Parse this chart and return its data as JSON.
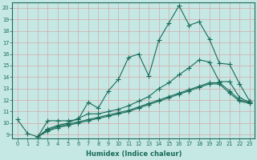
{
  "xlabel": "Humidex (Indice chaleur)",
  "bg_color": "#c5e8e4",
  "line_color": "#1a6b5a",
  "grid_color": "#d4a8a8",
  "xlim": [
    -0.5,
    23.5
  ],
  "ylim": [
    8.7,
    20.5
  ],
  "xticks": [
    0,
    1,
    2,
    3,
    4,
    5,
    6,
    7,
    8,
    9,
    10,
    11,
    12,
    13,
    14,
    15,
    16,
    17,
    18,
    19,
    20,
    21,
    22,
    23
  ],
  "yticks": [
    9,
    10,
    11,
    12,
    13,
    14,
    15,
    16,
    17,
    18,
    19,
    20
  ],
  "line1_x": [
    0,
    1,
    2,
    3,
    4,
    5,
    6,
    7,
    8,
    9,
    10,
    11,
    12,
    13,
    14,
    15,
    16,
    17,
    18,
    19,
    20,
    21,
    22,
    23
  ],
  "line1_y": [
    10.3,
    9.1,
    8.8,
    10.2,
    10.2,
    10.2,
    10.3,
    11.8,
    11.3,
    12.8,
    13.8,
    15.7,
    16.0,
    14.1,
    17.2,
    18.7,
    20.2,
    18.5,
    18.8,
    17.3,
    15.2,
    15.1,
    13.4,
    11.9
  ],
  "line2_x": [
    2,
    3,
    4,
    5,
    6,
    7,
    8,
    9,
    10,
    11,
    12,
    13,
    14,
    15,
    16,
    17,
    18,
    19,
    20,
    21,
    22,
    23
  ],
  "line2_y": [
    8.8,
    9.5,
    9.8,
    10.0,
    10.4,
    10.8,
    10.8,
    11.0,
    11.2,
    11.5,
    11.9,
    12.3,
    13.0,
    13.5,
    14.2,
    14.8,
    15.5,
    15.3,
    13.6,
    13.6,
    12.2,
    11.8
  ],
  "line3_x": [
    2,
    3,
    4,
    5,
    6,
    7,
    8,
    9,
    10,
    11,
    12,
    13,
    14,
    15,
    16,
    17,
    18,
    19,
    20,
    21,
    22,
    23
  ],
  "line3_y": [
    8.8,
    9.4,
    9.7,
    9.9,
    10.1,
    10.3,
    10.5,
    10.7,
    10.9,
    11.1,
    11.4,
    11.7,
    12.0,
    12.3,
    12.6,
    12.9,
    13.2,
    13.5,
    13.5,
    12.8,
    12.0,
    11.8
  ],
  "line4_x": [
    2,
    3,
    4,
    5,
    6,
    7,
    8,
    9,
    10,
    11,
    12,
    13,
    14,
    15,
    16,
    17,
    18,
    19,
    20,
    21,
    22,
    23
  ],
  "line4_y": [
    8.8,
    9.3,
    9.6,
    9.8,
    10.0,
    10.2,
    10.4,
    10.6,
    10.8,
    11.0,
    11.3,
    11.6,
    11.9,
    12.2,
    12.5,
    12.8,
    13.1,
    13.4,
    13.4,
    12.6,
    11.9,
    11.7
  ]
}
